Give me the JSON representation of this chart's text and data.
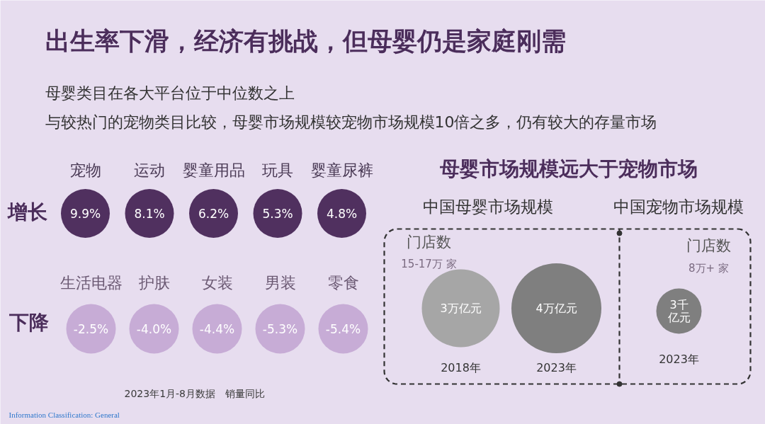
{
  "chart_data": [
    {
      "type": "other",
      "title": "出生率下滑，经济有挑战，但母婴仍是家庭刚需",
      "subtitle": "母婴类目在各大平台位于中位数之上",
      "ylabel": "增长",
      "categories": [
        "宠物",
        "运动",
        "婴童用品",
        "玩具",
        "婴童尿裤"
      ],
      "values": [
        9.9,
        8.1,
        6.2,
        5.3,
        4.8
      ],
      "value_labels": [
        "9.9%",
        "8.1%",
        "6.2%",
        "5.3%",
        "4.8%"
      ],
      "color": "#50305f",
      "annotations": [
        "与较热门的宠物类目比较，母婴市场规模较宠物市场规模10倍之多，仍有较大的存量市场"
      ]
    },
    {
      "type": "other",
      "ylabel": "下降",
      "categories": [
        "生活电器",
        "护肤",
        "女装",
        "男装",
        "零食"
      ],
      "values": [
        -2.5,
        -4.0,
        -4.4,
        -5.3,
        -5.4
      ],
      "value_labels": [
        "-2.5%",
        "-4.0%",
        "-4.4%",
        "-5.3%",
        "-5.4%"
      ],
      "color": "#c7acd6",
      "annotations": [
        "2023年1月-8月数据　销量同比",
        "Information Classification: General"
      ]
    },
    {
      "type": "other",
      "title": "母婴市场规模远大于宠物市场",
      "subtitle": "中国母婴市场规模",
      "categories": [
        "2018年",
        "2023年"
      ],
      "values": [
        3,
        4
      ],
      "value_labels": [
        "3万亿元",
        "4万亿元"
      ],
      "colors": [
        "#a6a6a6",
        "#7f7f7f"
      ],
      "annotations": [
        "门店数",
        "15-17万 家"
      ]
    },
    {
      "type": "other",
      "subtitle": "中国宠物市场规模",
      "categories": [
        "2023年"
      ],
      "values": [
        3
      ],
      "value_labels": [
        "3千亿元"
      ],
      "color": "#7f7f7f",
      "annotations": [
        "门店数",
        "8万+ 家"
      ]
    }
  ]
}
